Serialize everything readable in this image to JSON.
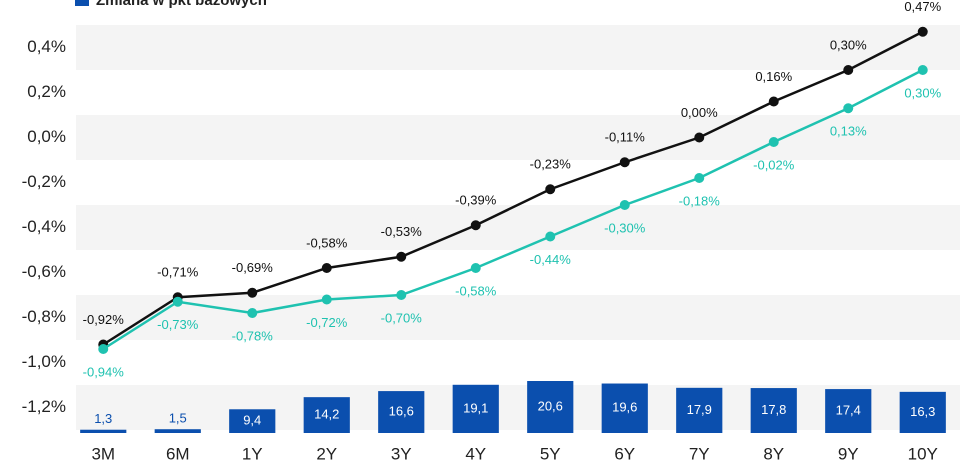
{
  "chart_data": {
    "type": "line",
    "legend": {
      "name": "Zmiana w pkt bazowych",
      "color": "#0b4fae"
    },
    "categories": [
      "3M",
      "6M",
      "1Y",
      "2Y",
      "3Y",
      "4Y",
      "5Y",
      "6Y",
      "7Y",
      "8Y",
      "9Y",
      "10Y"
    ],
    "ylim": [
      -1.3,
      0.5
    ],
    "yticks": [
      {
        "value": 0.4,
        "label": "0,4%"
      },
      {
        "value": 0.2,
        "label": "0,2%"
      },
      {
        "value": 0.0,
        "label": "0,0%"
      },
      {
        "value": -0.2,
        "label": "-0,2%"
      },
      {
        "value": -0.4,
        "label": "-0,4%"
      },
      {
        "value": -0.6,
        "label": "-0,6%"
      },
      {
        "value": -0.8,
        "label": "-0,8%"
      },
      {
        "value": -1.0,
        "label": "-1,0%"
      },
      {
        "value": -1.2,
        "label": "-1,2%"
      }
    ],
    "series": [
      {
        "color": "#111111",
        "values": [
          -0.92,
          -0.71,
          -0.69,
          -0.58,
          -0.53,
          -0.39,
          -0.23,
          -0.11,
          0.0,
          0.16,
          0.3,
          0.47
        ],
        "value_labels": [
          "-0,92%",
          "-0,71%",
          "-0,69%",
          "-0,58%",
          "-0,53%",
          "-0,39%",
          "-0,23%",
          "-0,11%",
          "0,00%",
          "0,16%",
          "0,30%",
          "0,47%"
        ]
      },
      {
        "color": "#1fc2b0",
        "values": [
          -0.94,
          -0.73,
          -0.78,
          -0.72,
          -0.7,
          -0.58,
          -0.44,
          -0.3,
          -0.18,
          -0.02,
          0.13,
          0.3
        ],
        "value_labels": [
          "-0,94%",
          "-0,73%",
          "-0,78%",
          "-0,72%",
          "-0,70%",
          "-0,58%",
          "-0,44%",
          "-0,30%",
          "-0,18%",
          "-0,02%",
          "0,13%",
          "0,30%"
        ]
      }
    ],
    "bars": {
      "color": "#0b4fae",
      "values": [
        1.3,
        1.5,
        9.4,
        14.2,
        16.6,
        19.1,
        20.6,
        19.6,
        17.9,
        17.8,
        17.4,
        16.3
      ],
      "value_labels": [
        "1,3",
        "1,5",
        "9,4",
        "14,2",
        "16,6",
        "19,1",
        "20,6",
        "19,6",
        "17,9",
        "17,8",
        "17,4",
        "16,3"
      ]
    }
  }
}
